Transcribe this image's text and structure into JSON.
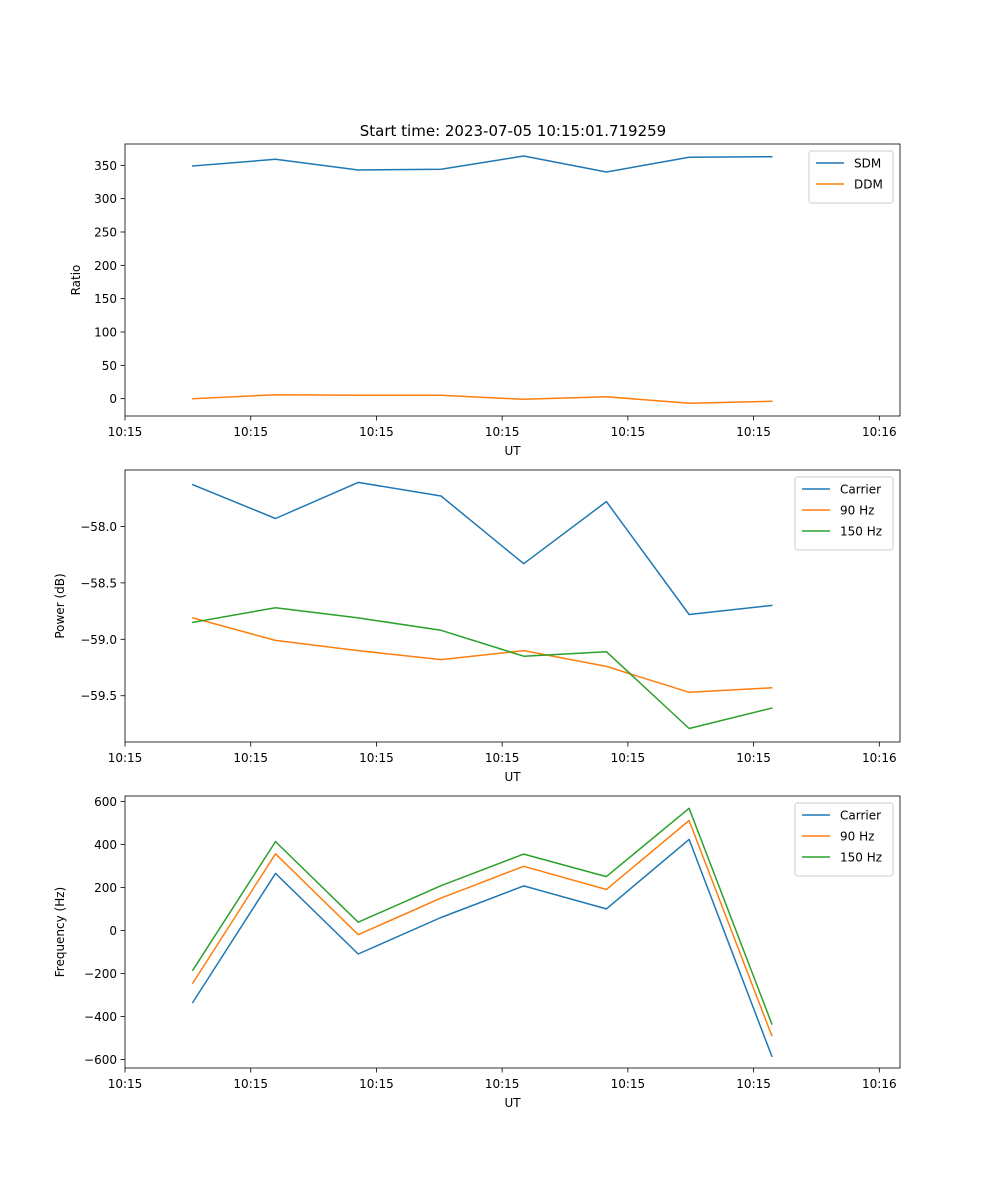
{
  "figure": {
    "title": "Start time: 2023-07-05 10:15:01.719259"
  },
  "colors": {
    "blue": "#1f77b4",
    "orange": "#ff7f0e",
    "green": "#2ca02c",
    "axis": "#000000",
    "legend_border": "#cccccc"
  },
  "chart_data": [
    {
      "type": "line",
      "title": "Start time: 2023-07-05 10:15:01.719259",
      "xlabel": "UT",
      "ylabel": "Ratio",
      "x": [
        1,
        2,
        3,
        4,
        5,
        6,
        7,
        8
      ],
      "xlim": [
        0.18,
        9.55
      ],
      "xticks": [
        {
          "v": 0.18,
          "label": "10:15"
        },
        {
          "v": 1.7,
          "label": "10:15"
        },
        {
          "v": 3.22,
          "label": "10:15"
        },
        {
          "v": 4.74,
          "label": "10:15"
        },
        {
          "v": 6.26,
          "label": "10:15"
        },
        {
          "v": 7.78,
          "label": "10:15"
        },
        {
          "v": 9.3,
          "label": "10:16"
        }
      ],
      "ylim": [
        -26,
        382
      ],
      "yticks": [
        {
          "v": 0,
          "label": "0"
        },
        {
          "v": 50,
          "label": "50"
        },
        {
          "v": 100,
          "label": "100"
        },
        {
          "v": 150,
          "label": "150"
        },
        {
          "v": 200,
          "label": "200"
        },
        {
          "v": 250,
          "label": "250"
        },
        {
          "v": 300,
          "label": "300"
        },
        {
          "v": 350,
          "label": "350"
        }
      ],
      "legend_loc": "upper right",
      "series": [
        {
          "name": "SDM",
          "color": "#1f77b4",
          "values": [
            349,
            359,
            343,
            344,
            364,
            340,
            362,
            363
          ]
        },
        {
          "name": "DDM",
          "color": "#ff7f0e",
          "values": [
            0,
            6,
            5,
            5,
            -1,
            3,
            -7,
            -4
          ]
        }
      ]
    },
    {
      "type": "line",
      "xlabel": "UT",
      "ylabel": "Power (dB)",
      "x": [
        1,
        2,
        3,
        4,
        5,
        6,
        7,
        8
      ],
      "xlim": [
        0.18,
        9.55
      ],
      "xticks": [
        {
          "v": 0.18,
          "label": "10:15"
        },
        {
          "v": 1.7,
          "label": "10:15"
        },
        {
          "v": 3.22,
          "label": "10:15"
        },
        {
          "v": 4.74,
          "label": "10:15"
        },
        {
          "v": 6.26,
          "label": "10:15"
        },
        {
          "v": 7.78,
          "label": "10:15"
        },
        {
          "v": 9.3,
          "label": "10:16"
        }
      ],
      "ylim": [
        -59.91,
        -57.5
      ],
      "yticks": [
        {
          "v": -58.0,
          "label": "−58.0"
        },
        {
          "v": -58.5,
          "label": "−58.5"
        },
        {
          "v": -59.0,
          "label": "−59.0"
        },
        {
          "v": -59.5,
          "label": "−59.5"
        }
      ],
      "legend_loc": "upper right",
      "series": [
        {
          "name": "Carrier",
          "color": "#1f77b4",
          "values": [
            -57.63,
            -57.93,
            -57.61,
            -57.73,
            -58.33,
            -57.78,
            -58.78,
            -58.7
          ]
        },
        {
          "name": "90 Hz",
          "color": "#ff7f0e",
          "values": [
            -58.81,
            -59.01,
            -59.1,
            -59.18,
            -59.1,
            -59.24,
            -59.47,
            -59.43
          ]
        },
        {
          "name": "150 Hz",
          "color": "#2ca02c",
          "values": [
            -58.85,
            -58.72,
            -58.81,
            -58.92,
            -59.15,
            -59.11,
            -59.79,
            -59.61
          ]
        }
      ]
    },
    {
      "type": "line",
      "xlabel": "UT",
      "ylabel": "Frequency (Hz)",
      "x": [
        1,
        2,
        3,
        4,
        5,
        6,
        7,
        8
      ],
      "xlim": [
        0.18,
        9.55
      ],
      "xticks": [
        {
          "v": 0.18,
          "label": "10:15"
        },
        {
          "v": 1.7,
          "label": "10:15"
        },
        {
          "v": 3.22,
          "label": "10:15"
        },
        {
          "v": 4.74,
          "label": "10:15"
        },
        {
          "v": 6.26,
          "label": "10:15"
        },
        {
          "v": 7.78,
          "label": "10:15"
        },
        {
          "v": 9.3,
          "label": "10:16"
        }
      ],
      "ylim": [
        -640,
        625
      ],
      "yticks": [
        {
          "v": -600,
          "label": "−600"
        },
        {
          "v": -400,
          "label": "−400"
        },
        {
          "v": -200,
          "label": "−200"
        },
        {
          "v": 0,
          "label": "0"
        },
        {
          "v": 200,
          "label": "200"
        },
        {
          "v": 400,
          "label": "400"
        },
        {
          "v": 600,
          "label": "600"
        }
      ],
      "legend_loc": "upper right",
      "series": [
        {
          "name": "Carrier",
          "color": "#1f77b4",
          "values": [
            -335,
            265,
            -110,
            60,
            207,
            100,
            423,
            -585
          ]
        },
        {
          "name": "90 Hz",
          "color": "#ff7f0e",
          "values": [
            -245,
            356,
            -20,
            150,
            298,
            190,
            511,
            -490
          ]
        },
        {
          "name": "150 Hz",
          "color": "#2ca02c",
          "values": [
            -185,
            413,
            38,
            208,
            355,
            250,
            568,
            -435
          ]
        }
      ]
    }
  ]
}
